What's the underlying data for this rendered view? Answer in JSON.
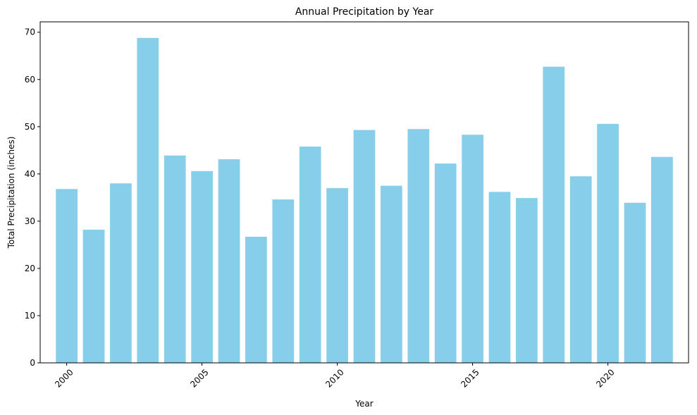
{
  "chart_data": {
    "type": "bar",
    "title": "Annual Precipitation by Year",
    "xlabel": "Year",
    "ylabel": "Total Precipitation (inches)",
    "x": [
      2000,
      2001,
      2002,
      2003,
      2004,
      2005,
      2006,
      2007,
      2008,
      2009,
      2010,
      2011,
      2012,
      2013,
      2014,
      2015,
      2016,
      2017,
      2018,
      2019,
      2020,
      2021,
      2022
    ],
    "values": [
      36.8,
      28.2,
      38.0,
      68.8,
      43.9,
      40.6,
      43.1,
      26.7,
      34.6,
      45.8,
      37.0,
      49.3,
      37.5,
      49.5,
      42.2,
      48.3,
      36.2,
      34.9,
      62.7,
      39.5,
      50.6,
      33.9,
      43.6
    ],
    "xticks": [
      "2000",
      "2005",
      "2010",
      "2015",
      "2020"
    ],
    "yticks": [
      "0",
      "10",
      "20",
      "30",
      "40",
      "50",
      "60",
      "70"
    ],
    "xlim": [
      1999.02,
      2022.98
    ],
    "ylim": [
      0,
      72.2
    ],
    "bar_color": "#87ceeb",
    "grid": false,
    "xtick_rotation_deg": 45
  }
}
